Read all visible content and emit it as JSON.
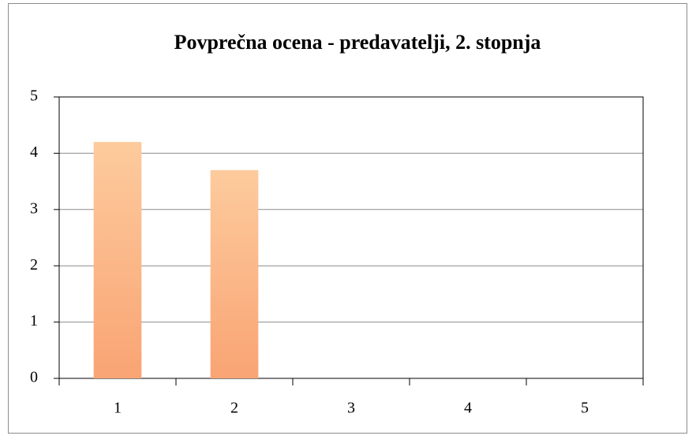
{
  "chart_data": {
    "type": "bar",
    "title": "Povprečna ocena - predavatelji, 2. stopnja",
    "categories": [
      "1",
      "2",
      "3",
      "4",
      "5"
    ],
    "values": [
      4.2,
      3.7,
      null,
      null,
      null
    ],
    "color": "#fbb886",
    "ylim": [
      0,
      5
    ],
    "yticks": [
      0,
      1,
      2,
      3,
      4,
      5
    ],
    "grid": true
  }
}
